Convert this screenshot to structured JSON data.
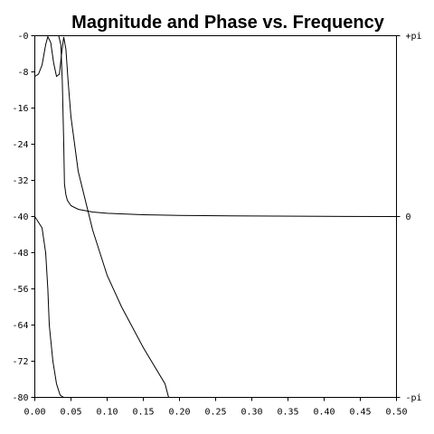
{
  "chart_data": {
    "type": "line",
    "title": "Magnitude and Phase vs. Frequency",
    "x_ticks": [
      "0.00",
      "0.05",
      "0.10",
      "0.15",
      "0.20",
      "0.25",
      "0.30",
      "0.35",
      "0.40",
      "0.45",
      "0.50"
    ],
    "y_left_ticks": [
      "-0",
      "-8",
      "-16",
      "-24",
      "-32",
      "-40",
      "-48",
      "-56",
      "-64",
      "-72",
      "-80"
    ],
    "y_right_ticks": [
      "+pi",
      "0",
      "-pi"
    ],
    "xlim": [
      0,
      0.5
    ],
    "ylim_left": [
      -80,
      0
    ],
    "ylim_right": [
      "-pi",
      "+pi"
    ],
    "grid": false,
    "series": [
      {
        "axis": "left",
        "x": [
          0.0,
          0.005,
          0.01,
          0.015,
          0.018,
          0.022,
          0.026,
          0.03,
          0.034,
          0.037,
          0.04,
          0.043,
          0.046,
          0.05,
          0.06,
          0.08,
          0.1,
          0.12,
          0.15,
          0.18,
          0.185
        ],
        "y": [
          -9,
          -8.5,
          -6.5,
          -2,
          -0.2,
          -1.5,
          -6,
          -9,
          -8.5,
          -4,
          -0.3,
          -3,
          -10,
          -18,
          -30,
          -43,
          -53,
          -60,
          -69,
          -77,
          -80
        ]
      },
      {
        "axis": "left",
        "x": [
          0.0,
          0.01,
          0.015,
          0.018,
          0.02,
          0.025,
          0.03,
          0.035,
          0.04
        ],
        "y": [
          -40,
          -42.5,
          -48,
          -56,
          -64,
          -72,
          -77,
          -79.5,
          -80
        ]
      },
      {
        "axis": "right",
        "x": [
          0.033,
          0.036,
          0.038,
          0.04,
          0.041,
          0.043,
          0.045,
          0.05,
          0.06,
          0.08,
          0.1,
          0.15,
          0.2,
          0.3,
          0.4,
          0.5
        ],
        "y_pi": [
          1.0,
          0.95,
          0.75,
          0.4,
          0.18,
          0.12,
          0.09,
          0.06,
          0.04,
          0.025,
          0.018,
          0.01,
          0.006,
          0.003,
          0.001,
          0.0
        ]
      }
    ]
  }
}
